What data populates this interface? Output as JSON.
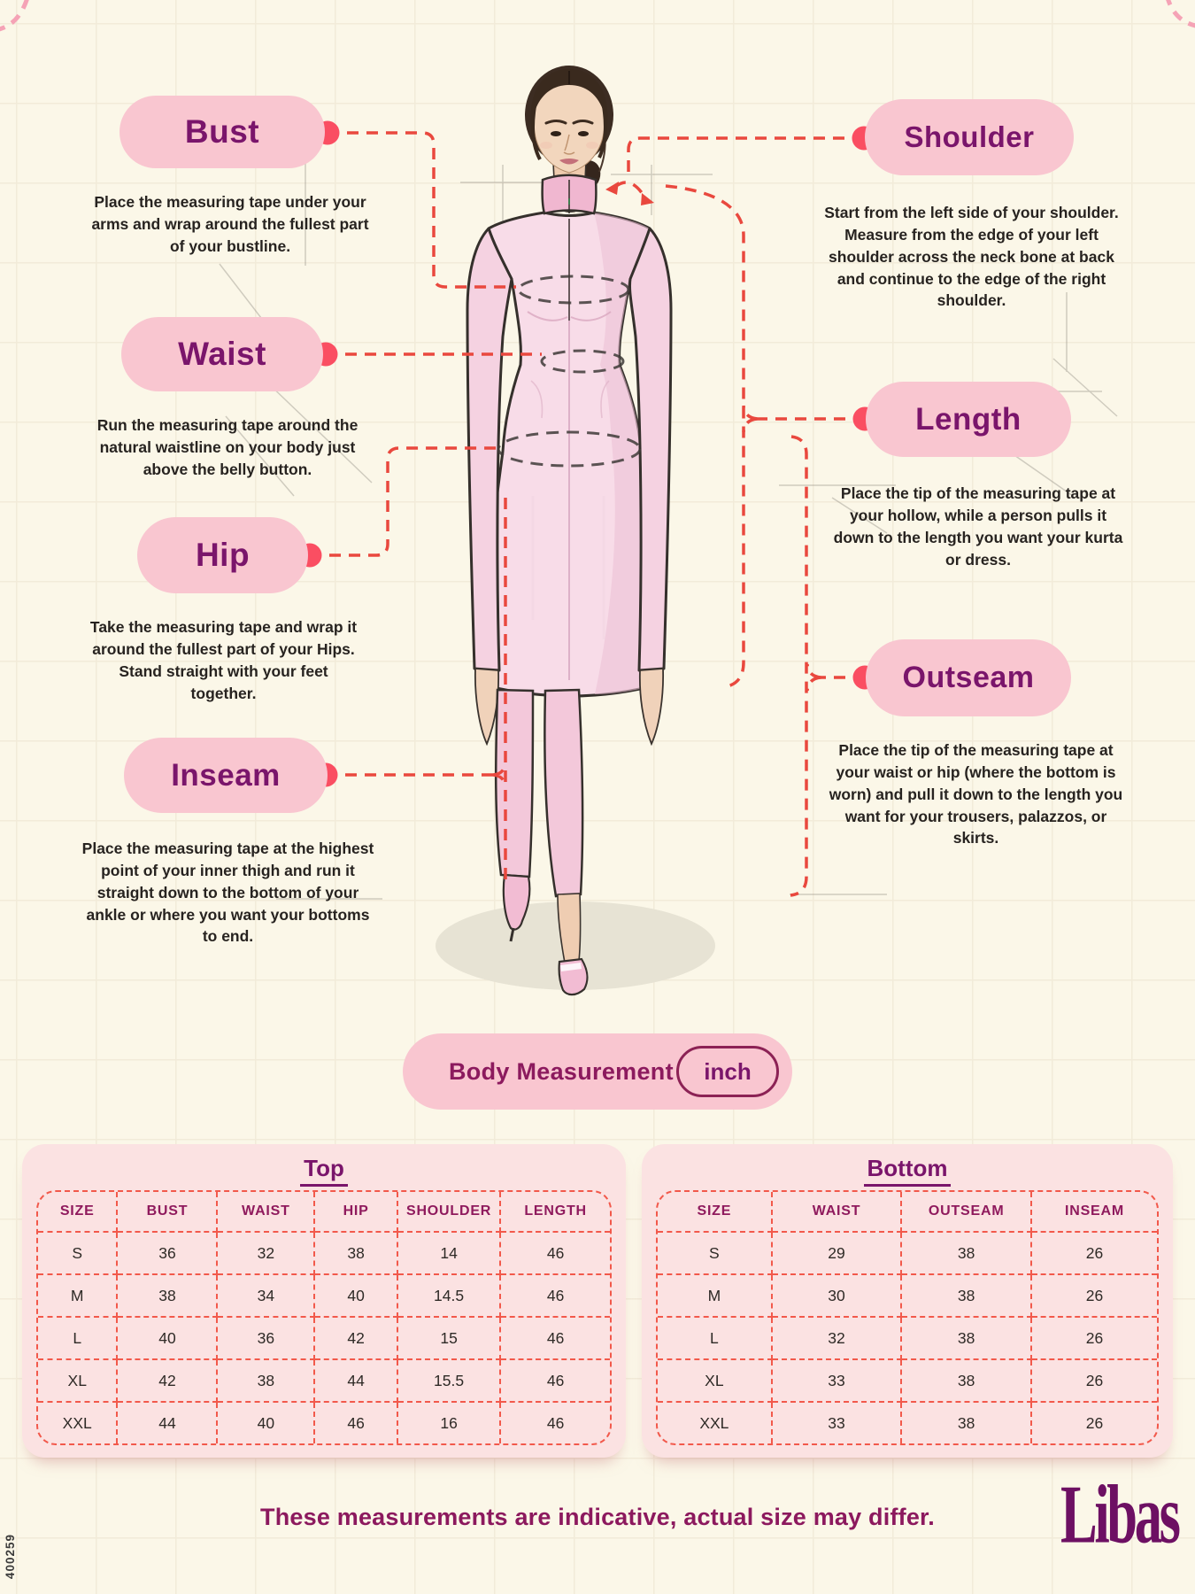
{
  "meta": {
    "side_code": "400259",
    "brand": "Libas"
  },
  "colors": {
    "page_bg": "#FBF7E8",
    "pill_bg": "#F9C6D0",
    "accent_purple": "#7A156B",
    "header_magenta": "#8F1A5D",
    "dot_pink": "#FA4E62",
    "dash_red": "#E9483E",
    "panel_bg": "#FBE2E2",
    "table_border": "#F2594B"
  },
  "callouts": [
    {
      "id": "bust",
      "label": "Bust",
      "desc": "Place the measuring tape under your arms and wrap around the fullest part of your bustline."
    },
    {
      "id": "shoulder",
      "label": "Shoulder",
      "desc": "Start from the left side of your shoulder. Measure from the edge of your left shoulder across the neck bone at back and continue to the edge of the right shoulder."
    },
    {
      "id": "waist",
      "label": "Waist",
      "desc": "Run the measuring tape around the natural waistline on your body just above the belly button."
    },
    {
      "id": "length",
      "label": "Length",
      "desc": "Place the tip of the measuring tape at your hollow, while a person pulls it down to the length you want your kurta or dress."
    },
    {
      "id": "hip",
      "label": "Hip",
      "desc": "Take the measuring tape and wrap it around the fullest part of your Hips. Stand straight with your feet together."
    },
    {
      "id": "outseam",
      "label": "Outseam",
      "desc": "Place the tip of the measuring tape at your waist or hip (where the bottom is worn) and pull it down to the length you want for your trousers, palazzos, or skirts."
    },
    {
      "id": "inseam",
      "label": "Inseam",
      "desc": "Place the measuring tape at the highest point of your inner thigh and run it straight down to the bottom of your ankle or where you want your bottoms to end."
    }
  ],
  "measurement_bar": {
    "label": "Body Measurement",
    "unit": "inch"
  },
  "tables": {
    "top": {
      "title": "Top",
      "headers": [
        "SIZE",
        "BUST",
        "WAIST",
        "HIP",
        "SHOULDER",
        "LENGTH"
      ],
      "rows": [
        [
          "S",
          "36",
          "32",
          "38",
          "14",
          "46"
        ],
        [
          "M",
          "38",
          "34",
          "40",
          "14.5",
          "46"
        ],
        [
          "L",
          "40",
          "36",
          "42",
          "15",
          "46"
        ],
        [
          "XL",
          "42",
          "38",
          "44",
          "15.5",
          "46"
        ],
        [
          "XXL",
          "44",
          "40",
          "46",
          "16",
          "46"
        ]
      ]
    },
    "bottom": {
      "title": "Bottom",
      "headers": [
        "SIZE",
        "WAIST",
        "OUTSEAM",
        "INSEAM"
      ],
      "rows": [
        [
          "S",
          "29",
          "38",
          "26"
        ],
        [
          "M",
          "30",
          "38",
          "26"
        ],
        [
          "L",
          "32",
          "38",
          "26"
        ],
        [
          "XL",
          "33",
          "38",
          "26"
        ],
        [
          "XXL",
          "33",
          "38",
          "26"
        ]
      ]
    }
  },
  "footer": {
    "note": "These measurements are indicative, actual size may differ."
  }
}
